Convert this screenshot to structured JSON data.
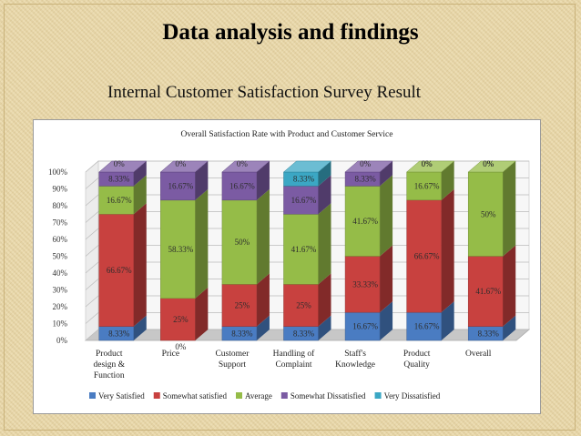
{
  "slide": {
    "title": "Data analysis and findings",
    "subtitle": "Internal Customer Satisfaction Survey Result"
  },
  "chart_data": {
    "type": "bar",
    "stacked": true,
    "three_d": true,
    "title": "Overall Satisfaction Rate with Product and Customer Service",
    "categories": [
      [
        "Product",
        "design &",
        "Function"
      ],
      [
        "Price"
      ],
      [
        "Customer",
        "Support"
      ],
      [
        "Handling of",
        "Complaint"
      ],
      [
        "Staff's",
        "Knowledge"
      ],
      [
        "Product",
        "Quality"
      ],
      [
        "Overall"
      ]
    ],
    "ylim": [
      0,
      100
    ],
    "yticks": [
      "0%",
      "10%",
      "20%",
      "30%",
      "40%",
      "50%",
      "60%",
      "70%",
      "80%",
      "90%",
      "100%"
    ],
    "grid": true,
    "legend_position": "bottom",
    "series": [
      {
        "name": "Very Satisfied",
        "color": "#4a7cc2",
        "values": [
          8.33,
          0,
          8.33,
          8.33,
          16.67,
          16.67,
          8.33
        ],
        "labels": [
          "8.33%",
          "0%",
          "8.33%",
          "8.33%",
          "16.67%",
          "16.67%",
          "8.33%"
        ]
      },
      {
        "name": "Somewhat satisfied",
        "color": "#c8413f",
        "values": [
          66.67,
          25,
          25,
          25,
          33.33,
          66.67,
          41.67
        ],
        "labels": [
          "66.67%",
          "25%",
          "25%",
          "25%",
          "33.33%",
          "66.67%",
          "41.67%"
        ]
      },
      {
        "name": "Average",
        "color": "#95bc48",
        "values": [
          16.67,
          58.33,
          50,
          41.67,
          41.67,
          16.67,
          50
        ],
        "labels": [
          "16.67%",
          "58.33%",
          "50%",
          "41.67%",
          "41.67%",
          "16.67%",
          "50%"
        ]
      },
      {
        "name": "Somewhat Dissatisfied",
        "color": "#7b5ba3",
        "values": [
          8.33,
          16.67,
          16.67,
          16.67,
          8.33,
          0,
          0
        ],
        "labels": [
          "8.33%",
          "16.67%",
          "16.67%",
          "16.67%",
          "8.33%",
          "0%",
          "0%"
        ]
      },
      {
        "name": "Very Dissatisfied",
        "color": "#3ba7c4",
        "values": [
          0,
          0,
          0,
          8.33,
          0,
          0,
          0
        ],
        "labels": [
          "0%",
          "0%",
          "0%",
          "8.33%",
          "0%",
          "0%",
          "0%"
        ]
      }
    ]
  }
}
